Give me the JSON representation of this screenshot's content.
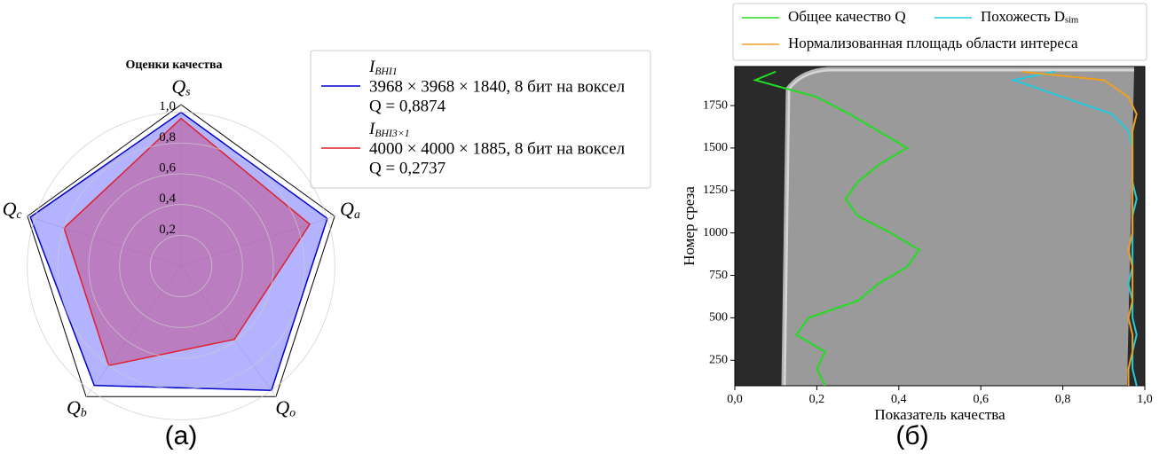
{
  "chart_data": [
    {
      "type": "radar",
      "title": "Оценки качества",
      "categories": [
        "Qs",
        "Qa",
        "Qo",
        "Qb",
        "Qc"
      ],
      "ylim": [
        0,
        1.05
      ],
      "yticks": [
        {
          "value": 0.2,
          "label": "0,2"
        },
        {
          "value": 0.4,
          "label": "0,4"
        },
        {
          "value": 0.6,
          "label": "0,6"
        },
        {
          "value": 0.8,
          "label": "0,8"
        },
        {
          "value": 1.0,
          "label": "1,0"
        }
      ],
      "grid": true,
      "series": [
        {
          "name": "IBHI1",
          "description": "3968 × 3968 × 1840, 8 бит на воксел",
          "score": "Q = 0,8874",
          "color": "#0000cc",
          "fill": "#8080ff",
          "values": [
            1.0,
            1.0,
            1.0,
            0.96,
            1.03
          ]
        },
        {
          "name": "IBHI3×1",
          "description": "4000 × 4000 × 1885, 8 бит на воксел",
          "score": "Q = 0,2737",
          "color": "#e0202a",
          "fill": "#c0508a",
          "values": [
            0.96,
            0.88,
            0.59,
            0.8,
            0.8
          ]
        }
      ],
      "caption": "(а)"
    },
    {
      "type": "line",
      "xlabel": "Показатель качества",
      "ylabel": "Номер среза",
      "xlim": [
        0,
        1
      ],
      "ylim": [
        100,
        1980
      ],
      "xticks": [
        {
          "value": 0,
          "label": "0,0"
        },
        {
          "value": 0.2,
          "label": "0,2"
        },
        {
          "value": 0.4,
          "label": "0,4"
        },
        {
          "value": 0.6,
          "label": "0,6"
        },
        {
          "value": 0.8,
          "label": "0,8"
        },
        {
          "value": 1,
          "label": "1,0"
        }
      ],
      "yticks": [
        250,
        500,
        750,
        1000,
        1250,
        1500,
        1750
      ],
      "y": [
        100,
        200,
        300,
        400,
        500,
        600,
        700,
        800,
        900,
        1000,
        1100,
        1200,
        1300,
        1400,
        1500,
        1600,
        1700,
        1800,
        1900,
        1950
      ],
      "series": [
        {
          "name": "Общее качество Q",
          "color": "#22dd22",
          "values": [
            0.22,
            0.2,
            0.22,
            0.15,
            0.18,
            0.3,
            0.35,
            0.42,
            0.45,
            0.38,
            0.3,
            0.27,
            0.3,
            0.35,
            0.42,
            0.35,
            0.28,
            0.2,
            0.05,
            0.1
          ]
        },
        {
          "name": "Похожесть Dsim",
          "color": "#22ccdd",
          "values": [
            0.98,
            0.97,
            0.97,
            0.98,
            0.97,
            0.97,
            0.96,
            0.97,
            0.97,
            0.97,
            0.97,
            0.98,
            0.97,
            0.97,
            0.97,
            0.96,
            0.92,
            0.8,
            0.68,
            0.78
          ]
        },
        {
          "name": "Нормализованная площадь области интереса",
          "color": "#f0a020",
          "values": [
            0.96,
            0.96,
            0.97,
            0.97,
            0.96,
            0.97,
            0.97,
            0.97,
            0.96,
            0.97,
            0.97,
            0.97,
            0.97,
            0.97,
            0.97,
            0.97,
            0.98,
            0.96,
            0.9,
            0.7
          ]
        }
      ],
      "caption": "(б)"
    }
  ]
}
